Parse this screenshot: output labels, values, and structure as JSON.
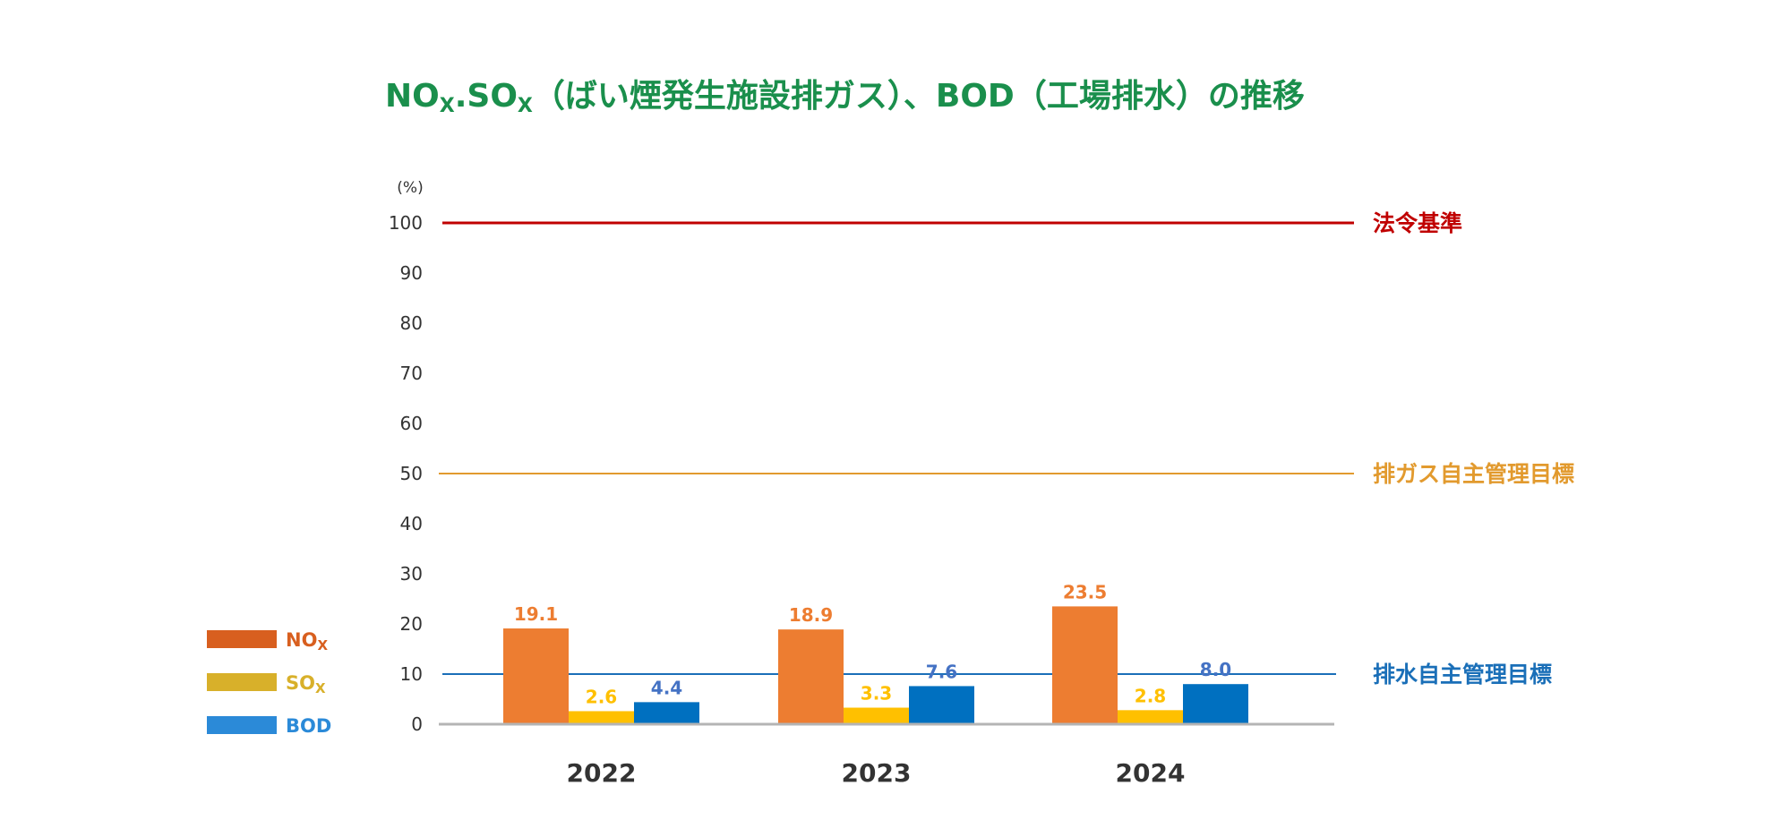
{
  "chart_data": {
    "type": "bar",
    "title": {
      "parts": [
        {
          "text": "NO",
          "sub": false
        },
        {
          "text": "X",
          "sub": true
        },
        {
          "text": ".",
          "sub": false
        },
        {
          "text": "SO",
          "sub": false
        },
        {
          "text": "X",
          "sub": true
        },
        {
          "text": "（ばい煙発生施設排ガス）、BOD（工場排水）の推移",
          "sub": false
        }
      ],
      "color": "#1a8f4c"
    },
    "ylabel": "(%)",
    "ylim": [
      0,
      100
    ],
    "yticks": [
      "0",
      "10",
      "20",
      "30",
      "40",
      "50",
      "60",
      "70",
      "80",
      "90",
      "100"
    ],
    "categories": [
      "2022",
      "2023",
      "2024"
    ],
    "series": [
      {
        "name": "NO",
        "sub": "X",
        "color": "#ed7d31",
        "legend_color": "#d85f1f",
        "label_color": "#ed7d31",
        "values": [
          19.1,
          18.9,
          23.5
        ],
        "labels": [
          "19.1",
          "18.9",
          "23.5"
        ]
      },
      {
        "name": "SO",
        "sub": "X",
        "color": "#ffc000",
        "legend_color": "#d8b02a",
        "label_color": "#ffc000",
        "values": [
          2.6,
          3.3,
          2.8
        ],
        "labels": [
          "2.6",
          "3.3",
          "2.8"
        ]
      },
      {
        "name": "BOD",
        "sub": "",
        "color": "#0070c0",
        "legend_color": "#2b8ad8",
        "label_color": "#4472c4",
        "values": [
          4.4,
          7.6,
          8.0
        ],
        "labels": [
          "4.4",
          "7.6",
          "8.0"
        ]
      }
    ],
    "reference_lines": [
      {
        "value": 100,
        "label": "法令基準",
        "color": "#c00000"
      },
      {
        "value": 50,
        "label": "排ガス自主管理目標",
        "color": "#e29a2e"
      },
      {
        "value": 10,
        "label": "排水自主管理目標",
        "color": "#1a6fb8"
      }
    ],
    "grid": false,
    "legend_position": "left"
  }
}
